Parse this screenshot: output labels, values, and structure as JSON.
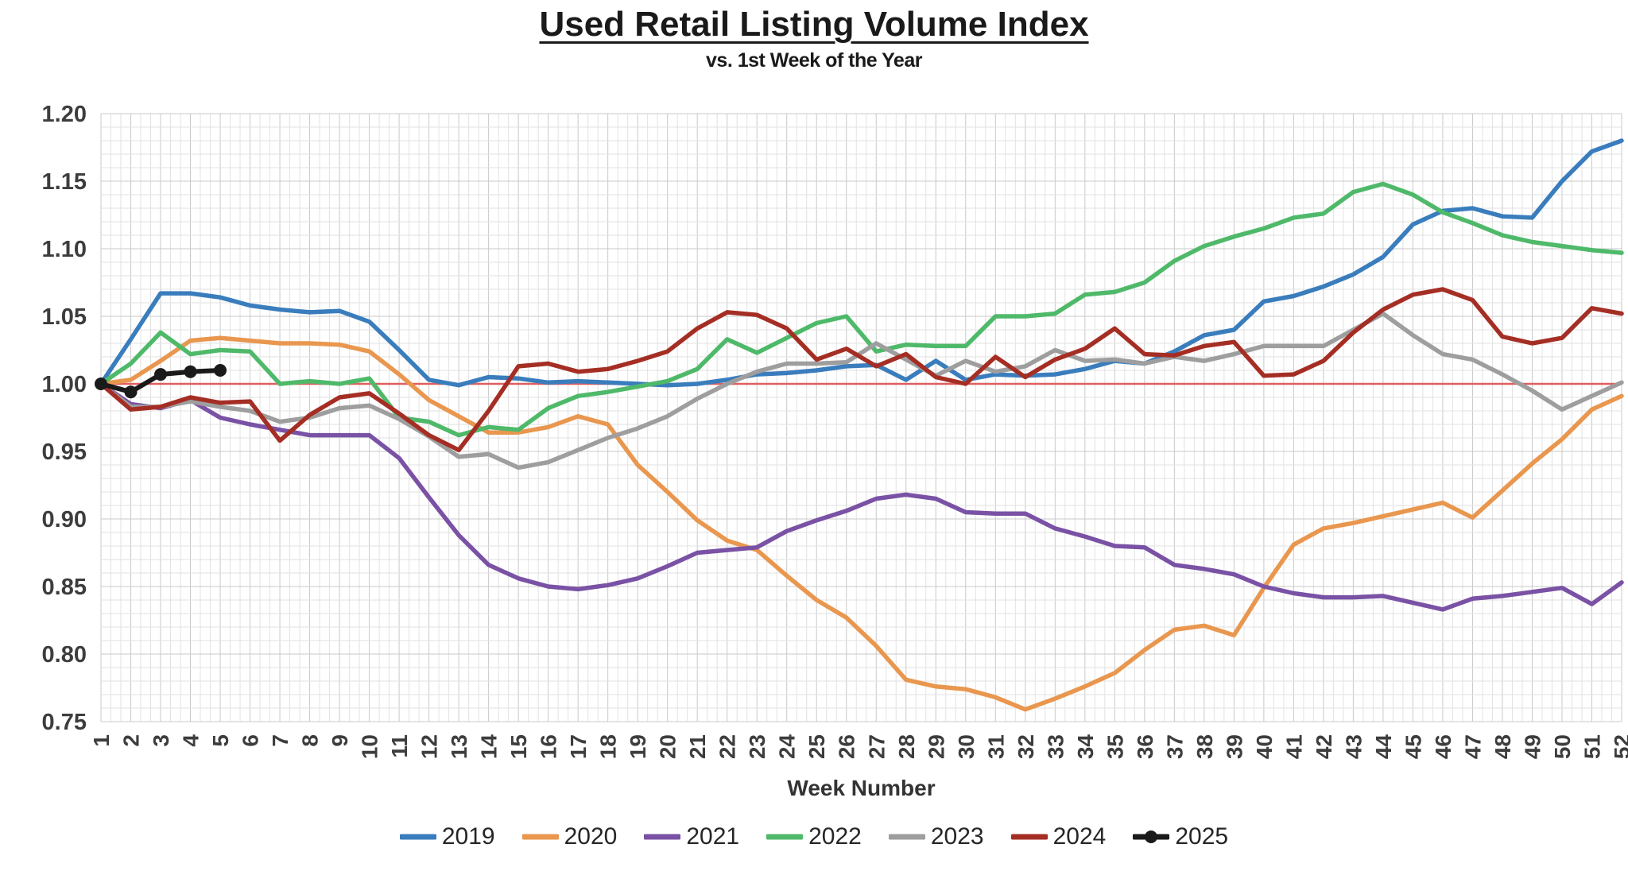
{
  "header": {
    "title": "Used Retail Listing Volume Index",
    "subtitle": "vs. 1st Week of the Year"
  },
  "chart_data": {
    "type": "line",
    "title": "Used Retail Listing Volume Index",
    "subtitle": "vs. 1st Week of the Year",
    "xlabel": "Week Number",
    "ylabel": "",
    "x": [
      1,
      2,
      3,
      4,
      5,
      6,
      7,
      8,
      9,
      10,
      11,
      12,
      13,
      14,
      15,
      16,
      17,
      18,
      19,
      20,
      21,
      22,
      23,
      24,
      25,
      26,
      27,
      28,
      29,
      30,
      31,
      32,
      33,
      34,
      35,
      36,
      37,
      38,
      39,
      40,
      41,
      42,
      43,
      44,
      45,
      46,
      47,
      48,
      49,
      50,
      51,
      52
    ],
    "ylim": [
      0.75,
      1.2
    ],
    "yticks": [
      "1.20",
      "1.15",
      "1.10",
      "1.05",
      "1.00",
      "0.95",
      "0.90",
      "0.85",
      "0.80",
      "0.75"
    ],
    "grid": {
      "on": true,
      "minor_color": "#e2e2e2",
      "major_color": "#c9c9c9"
    },
    "baseline": {
      "value": 1.0,
      "color": "#e05f5f"
    },
    "legend_position": "bottom",
    "series": [
      {
        "name": "2019",
        "color": "#3a7dbd",
        "marker": false,
        "values": [
          1.0,
          1.033,
          1.067,
          1.067,
          1.064,
          1.058,
          1.055,
          1.053,
          1.054,
          1.046,
          1.025,
          1.003,
          0.999,
          1.005,
          1.004,
          1.001,
          1.002,
          1.001,
          1.0,
          0.999,
          1.0,
          1.003,
          1.007,
          1.008,
          1.01,
          1.013,
          1.014,
          1.003,
          1.017,
          1.003,
          1.007,
          1.006,
          1.007,
          1.011,
          1.017,
          1.015,
          1.024,
          1.036,
          1.04,
          1.061,
          1.065,
          1.072,
          1.081,
          1.094,
          1.118,
          1.128,
          1.13,
          1.124,
          1.123,
          1.15,
          1.172,
          1.18
        ]
      },
      {
        "name": "2020",
        "color": "#e9974f",
        "marker": false,
        "values": [
          1.0,
          1.003,
          1.017,
          1.032,
          1.034,
          1.032,
          1.03,
          1.03,
          1.029,
          1.024,
          1.007,
          0.988,
          0.976,
          0.964,
          0.964,
          0.968,
          0.976,
          0.97,
          0.94,
          0.92,
          0.899,
          0.884,
          0.877,
          0.858,
          0.84,
          0.827,
          0.806,
          0.781,
          0.776,
          0.774,
          0.768,
          0.759,
          0.767,
          0.776,
          0.786,
          0.803,
          0.818,
          0.821,
          0.814,
          0.849,
          0.881,
          0.893,
          0.897,
          0.902,
          0.907,
          0.912,
          0.901,
          0.921,
          0.941,
          0.959,
          0.981,
          0.991
        ]
      },
      {
        "name": "2021",
        "color": "#7a52a5",
        "marker": false,
        "values": [
          1.0,
          0.985,
          0.982,
          0.988,
          0.975,
          0.97,
          0.966,
          0.962,
          0.962,
          0.962,
          0.945,
          0.916,
          0.888,
          0.866,
          0.856,
          0.85,
          0.848,
          0.851,
          0.856,
          0.865,
          0.875,
          0.877,
          0.879,
          0.891,
          0.899,
          0.906,
          0.915,
          0.918,
          0.915,
          0.905,
          0.904,
          0.904,
          0.893,
          0.887,
          0.88,
          0.879,
          0.866,
          0.863,
          0.859,
          0.85,
          0.845,
          0.842,
          0.842,
          0.843,
          0.838,
          0.833,
          0.841,
          0.843,
          0.846,
          0.849,
          0.837,
          0.853
        ]
      },
      {
        "name": "2022",
        "color": "#4fb96a",
        "marker": false,
        "values": [
          1.0,
          1.015,
          1.038,
          1.022,
          1.025,
          1.024,
          1.0,
          1.002,
          1.0,
          1.004,
          0.975,
          0.972,
          0.962,
          0.968,
          0.966,
          0.982,
          0.991,
          0.994,
          0.998,
          1.002,
          1.011,
          1.033,
          1.023,
          1.034,
          1.045,
          1.05,
          1.024,
          1.029,
          1.028,
          1.028,
          1.05,
          1.05,
          1.052,
          1.066,
          1.068,
          1.075,
          1.091,
          1.102,
          1.109,
          1.115,
          1.123,
          1.126,
          1.142,
          1.148,
          1.14,
          1.127,
          1.119,
          1.11,
          1.105,
          1.102,
          1.099,
          1.097
        ]
      },
      {
        "name": "2023",
        "color": "#9e9e9e",
        "marker": false,
        "values": [
          1.0,
          0.983,
          0.983,
          0.987,
          0.983,
          0.98,
          0.972,
          0.975,
          0.982,
          0.984,
          0.974,
          0.961,
          0.946,
          0.948,
          0.938,
          0.942,
          0.951,
          0.96,
          0.967,
          0.976,
          0.989,
          1.0,
          1.009,
          1.015,
          1.015,
          1.016,
          1.03,
          1.018,
          1.006,
          1.017,
          1.009,
          1.013,
          1.025,
          1.017,
          1.018,
          1.015,
          1.02,
          1.017,
          1.022,
          1.028,
          1.028,
          1.028,
          1.04,
          1.052,
          1.036,
          1.022,
          1.018,
          1.007,
          0.995,
          0.981,
          0.991,
          1.001
        ]
      },
      {
        "name": "2024",
        "color": "#a52e24",
        "marker": false,
        "values": [
          1.0,
          0.981,
          0.983,
          0.99,
          0.986,
          0.987,
          0.958,
          0.977,
          0.99,
          0.993,
          0.978,
          0.962,
          0.951,
          0.98,
          1.013,
          1.015,
          1.009,
          1.011,
          1.017,
          1.024,
          1.041,
          1.053,
          1.051,
          1.041,
          1.018,
          1.026,
          1.013,
          1.022,
          1.005,
          1.0,
          1.02,
          1.005,
          1.018,
          1.026,
          1.041,
          1.022,
          1.021,
          1.028,
          1.031,
          1.006,
          1.007,
          1.017,
          1.038,
          1.055,
          1.066,
          1.07,
          1.062,
          1.035,
          1.03,
          1.034,
          1.056,
          1.052
        ]
      },
      {
        "name": "2025",
        "color": "#1a1a1a",
        "marker": true,
        "values": [
          1.0,
          0.994,
          1.007,
          1.009,
          1.01
        ]
      }
    ]
  }
}
